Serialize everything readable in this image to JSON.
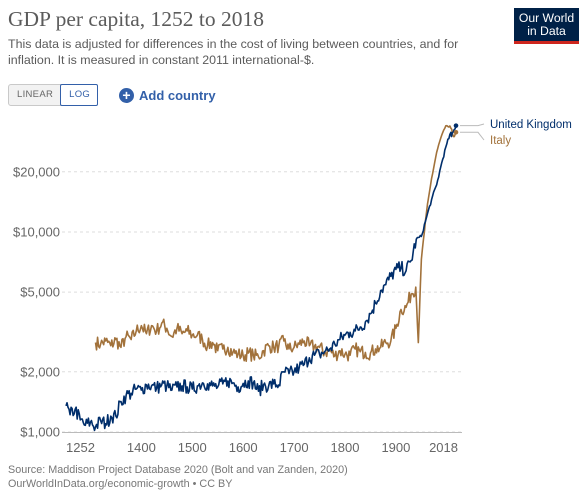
{
  "header": {
    "title": "GDP per capita, 1252 to 2018",
    "subtitle": "This data is adjusted for differences in the cost of living between countries, and for inflation. It is measured in constant 2011 international-$."
  },
  "logo": {
    "line1": "Our World",
    "line2": "in Data",
    "bg_color": "#002147",
    "stripe_color": "#ce261e"
  },
  "controls": {
    "scale_options": [
      "LINEAR",
      "LOG"
    ],
    "active_scale": "LOG",
    "add_country_label": "Add country",
    "add_country_icon": "plus-circle-icon"
  },
  "footer": {
    "source_line1": "Source: Maddison Project Database 2020 (Bolt and van Zanden, 2020)",
    "source_line2": "OurWorldInData.org/economic-growth • CC BY"
  },
  "chart_data": {
    "type": "line",
    "title": "GDP per capita, 1252 to 2018",
    "y_scale": "log",
    "xlim": [
      1252,
      2018
    ],
    "ylim": [
      1000,
      38000
    ],
    "x_ticks": [
      1252,
      1400,
      1500,
      1600,
      1700,
      1800,
      1900,
      2018
    ],
    "y_ticks": [
      1000,
      2000,
      5000,
      10000,
      20000
    ],
    "y_tick_labels": [
      "$1,000",
      "$2,000",
      "$5,000",
      "$10,000",
      "$20,000"
    ],
    "grid": "horizontal dashed",
    "legend": "right of line ends",
    "series": [
      {
        "name": "United Kingdom",
        "color": "#002e6b",
        "points": [
          [
            1252,
            1350
          ],
          [
            1260,
            1220
          ],
          [
            1270,
            1300
          ],
          [
            1280,
            1150
          ],
          [
            1290,
            1080
          ],
          [
            1300,
            1120
          ],
          [
            1310,
            1060
          ],
          [
            1320,
            1140
          ],
          [
            1330,
            1100
          ],
          [
            1340,
            1200
          ],
          [
            1350,
            1200
          ],
          [
            1360,
            1420
          ],
          [
            1370,
            1520
          ],
          [
            1380,
            1560
          ],
          [
            1390,
            1640
          ],
          [
            1400,
            1620
          ],
          [
            1410,
            1720
          ],
          [
            1420,
            1700
          ],
          [
            1430,
            1660
          ],
          [
            1440,
            1720
          ],
          [
            1450,
            1700
          ],
          [
            1460,
            1620
          ],
          [
            1470,
            1680
          ],
          [
            1480,
            1700
          ],
          [
            1490,
            1680
          ],
          [
            1500,
            1640
          ],
          [
            1510,
            1700
          ],
          [
            1520,
            1760
          ],
          [
            1530,
            1740
          ],
          [
            1540,
            1700
          ],
          [
            1550,
            1680
          ],
          [
            1560,
            1740
          ],
          [
            1570,
            1800
          ],
          [
            1580,
            1760
          ],
          [
            1590,
            1680
          ],
          [
            1600,
            1750
          ],
          [
            1610,
            1800
          ],
          [
            1620,
            1760
          ],
          [
            1630,
            1600
          ],
          [
            1640,
            1720
          ],
          [
            1650,
            1700
          ],
          [
            1660,
            1740
          ],
          [
            1670,
            1720
          ],
          [
            1680,
            2000
          ],
          [
            1690,
            1960
          ],
          [
            1700,
            2000
          ],
          [
            1710,
            2100
          ],
          [
            1720,
            2180
          ],
          [
            1730,
            2350
          ],
          [
            1740,
            2420
          ],
          [
            1750,
            2450
          ],
          [
            1760,
            2520
          ],
          [
            1770,
            2600
          ],
          [
            1780,
            2750
          ],
          [
            1790,
            2900
          ],
          [
            1800,
            3050
          ],
          [
            1810,
            3150
          ],
          [
            1820,
            3200
          ],
          [
            1830,
            3350
          ],
          [
            1840,
            3550
          ],
          [
            1850,
            3900
          ],
          [
            1860,
            4400
          ],
          [
            1870,
            5100
          ],
          [
            1880,
            5450
          ],
          [
            1890,
            6000
          ],
          [
            1900,
            6500
          ],
          [
            1910,
            6600
          ],
          [
            1920,
            6400
          ],
          [
            1930,
            7200
          ],
          [
            1940,
            9200
          ],
          [
            1950,
            9500
          ],
          [
            1960,
            11800
          ],
          [
            1970,
            14500
          ],
          [
            1980,
            17200
          ],
          [
            1990,
            22200
          ],
          [
            2000,
            27600
          ],
          [
            2008,
            31500
          ],
          [
            2009,
            30000
          ],
          [
            2018,
            34000
          ]
        ]
      },
      {
        "name": "Italy",
        "color": "#a2723b",
        "points": [
          [
            1310,
            2800
          ],
          [
            1320,
            2750
          ],
          [
            1330,
            2850
          ],
          [
            1340,
            2700
          ],
          [
            1350,
            2900
          ],
          [
            1360,
            2650
          ],
          [
            1370,
            3000
          ],
          [
            1380,
            2900
          ],
          [
            1390,
            3200
          ],
          [
            1400,
            3400
          ],
          [
            1410,
            3100
          ],
          [
            1420,
            3400
          ],
          [
            1430,
            3200
          ],
          [
            1440,
            3500
          ],
          [
            1450,
            3300
          ],
          [
            1460,
            3000
          ],
          [
            1470,
            3300
          ],
          [
            1480,
            3100
          ],
          [
            1490,
            3200
          ],
          [
            1500,
            3050
          ],
          [
            1510,
            3050
          ],
          [
            1520,
            2900
          ],
          [
            1530,
            2700
          ],
          [
            1540,
            2800
          ],
          [
            1550,
            2550
          ],
          [
            1560,
            2600
          ],
          [
            1570,
            2650
          ],
          [
            1580,
            2500
          ],
          [
            1590,
            2450
          ],
          [
            1600,
            2400
          ],
          [
            1610,
            2480
          ],
          [
            1620,
            2420
          ],
          [
            1630,
            2380
          ],
          [
            1640,
            2550
          ],
          [
            1650,
            2700
          ],
          [
            1660,
            2650
          ],
          [
            1670,
            2700
          ],
          [
            1680,
            2850
          ],
          [
            1690,
            2600
          ],
          [
            1700,
            2650
          ],
          [
            1710,
            2750
          ],
          [
            1720,
            2850
          ],
          [
            1730,
            2700
          ],
          [
            1740,
            2680
          ],
          [
            1750,
            2650
          ],
          [
            1760,
            2500
          ],
          [
            1770,
            2550
          ],
          [
            1780,
            2400
          ],
          [
            1790,
            2550
          ],
          [
            1800,
            2450
          ],
          [
            1810,
            2420
          ],
          [
            1820,
            2600
          ],
          [
            1830,
            2520
          ],
          [
            1840,
            2500
          ],
          [
            1850,
            2480
          ],
          [
            1860,
            2600
          ],
          [
            1870,
            2650
          ],
          [
            1880,
            2800
          ],
          [
            1890,
            2850
          ],
          [
            1900,
            3300
          ],
          [
            1910,
            4100
          ],
          [
            1920,
            4200
          ],
          [
            1930,
            4900
          ],
          [
            1939,
            5300
          ],
          [
            1944,
            2800
          ],
          [
            1950,
            7300
          ],
          [
            1960,
            12500
          ],
          [
            1970,
            18500
          ],
          [
            1980,
            25000
          ],
          [
            1990,
            30500
          ],
          [
            2000,
            34000
          ],
          [
            2008,
            33000
          ],
          [
            2013,
            30000
          ],
          [
            2018,
            31500
          ]
        ]
      }
    ]
  }
}
